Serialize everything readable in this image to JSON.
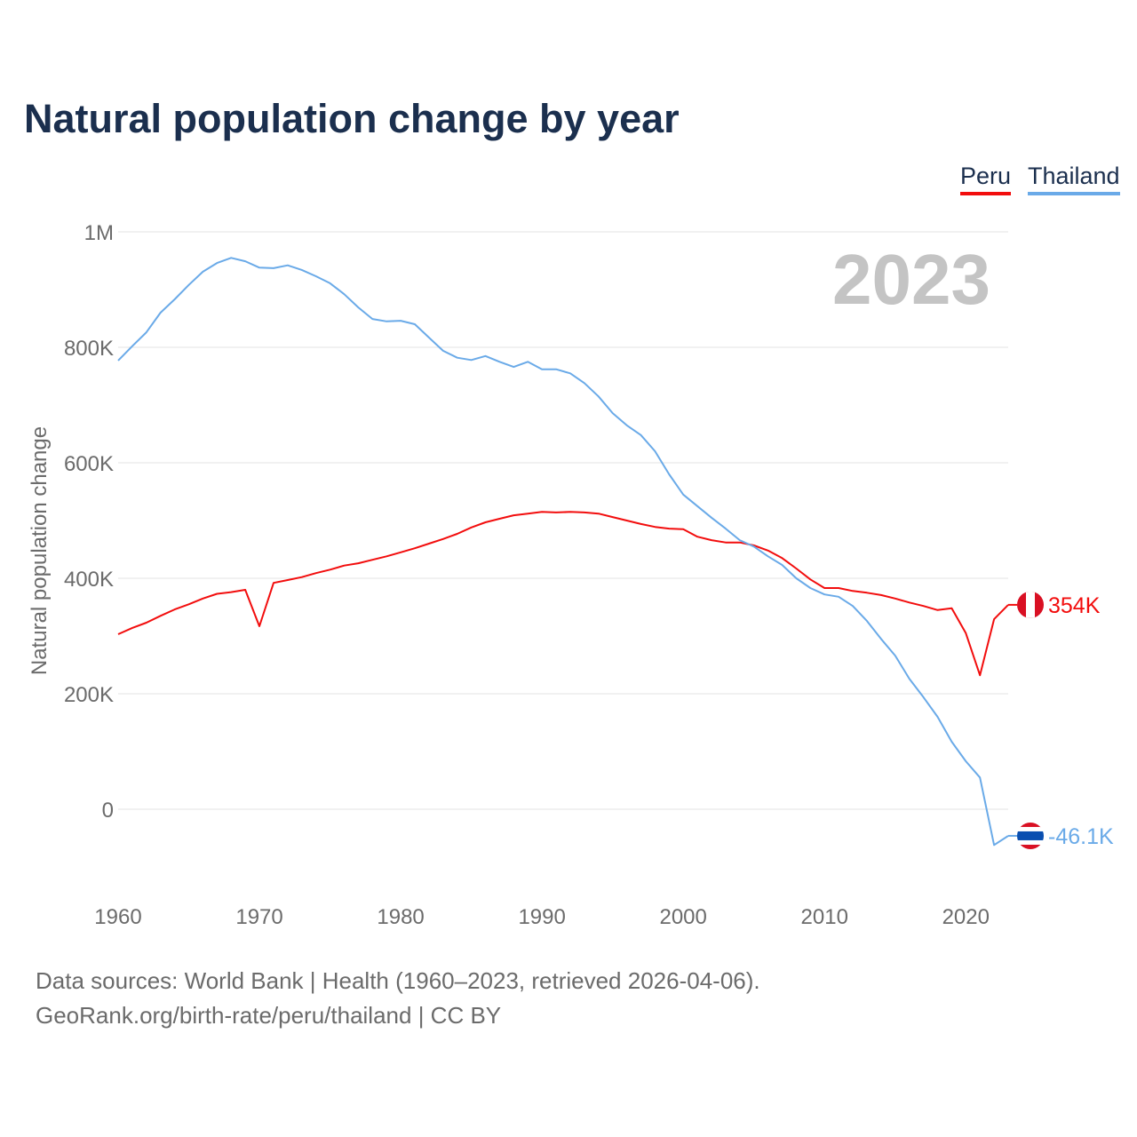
{
  "title": "Natural population change by year",
  "year_badge": "2023",
  "footer": {
    "line1": "Data sources: World Bank | Health (1960–2023, retrieved 2026-04-06).",
    "line2": "GeoRank.org/birth-rate/peru/thailand | CC BY"
  },
  "chart_data": {
    "type": "line",
    "title": "Natural population change by year",
    "xlabel": "",
    "ylabel": "Natural population change",
    "xlim": [
      1960,
      2023
    ],
    "ylim": [
      -100000,
      1000000
    ],
    "xticks": [
      1960,
      1970,
      1980,
      1990,
      2000,
      2010,
      2020
    ],
    "xtick_labels": [
      "1960",
      "1970",
      "1980",
      "1990",
      "2000",
      "2010",
      "2020"
    ],
    "yticks": [
      0,
      200000,
      400000,
      600000,
      800000,
      1000000
    ],
    "ytick_labels": [
      "0",
      "200K",
      "400K",
      "600K",
      "800K",
      "1M"
    ],
    "grid": true,
    "legend_position": "top-right",
    "x": [
      1960,
      1961,
      1962,
      1963,
      1964,
      1965,
      1966,
      1967,
      1968,
      1969,
      1970,
      1971,
      1972,
      1973,
      1974,
      1975,
      1976,
      1977,
      1978,
      1979,
      1980,
      1981,
      1982,
      1983,
      1984,
      1985,
      1986,
      1987,
      1988,
      1989,
      1990,
      1991,
      1992,
      1993,
      1994,
      1995,
      1996,
      1997,
      1998,
      1999,
      2000,
      2001,
      2002,
      2003,
      2004,
      2005,
      2006,
      2007,
      2008,
      2009,
      2010,
      2011,
      2012,
      2013,
      2014,
      2015,
      2016,
      2017,
      2018,
      2019,
      2020,
      2021,
      2022,
      2023
    ],
    "series": [
      {
        "name": "Peru",
        "color": "#f20d0d",
        "end_label": "354K",
        "values": [
          303000,
          314000,
          323000,
          335000,
          346000,
          355000,
          365000,
          373000,
          376000,
          380000,
          317000,
          392000,
          397000,
          402000,
          409000,
          415000,
          422000,
          426000,
          432000,
          438000,
          445000,
          452000,
          460000,
          468000,
          477000,
          488000,
          497000,
          503000,
          509000,
          512000,
          515000,
          514000,
          515000,
          514000,
          512000,
          506000,
          500000,
          494000,
          489000,
          486000,
          485000,
          472000,
          466000,
          462000,
          462000,
          457000,
          448000,
          435000,
          417000,
          398000,
          383000,
          383000,
          378000,
          375000,
          371000,
          365000,
          358000,
          352000,
          345000,
          348000,
          305000,
          232000,
          329000,
          354000
        ]
      },
      {
        "name": "Thailand",
        "color": "#6aaae8",
        "end_label": "-46.1K",
        "values": [
          777000,
          802000,
          826000,
          860000,
          883000,
          908000,
          931000,
          946000,
          955000,
          949000,
          938000,
          937000,
          942000,
          934000,
          923000,
          911000,
          892000,
          869000,
          849000,
          845000,
          846000,
          840000,
          817000,
          794000,
          782000,
          778000,
          785000,
          775000,
          766000,
          775000,
          762000,
          762000,
          755000,
          738000,
          715000,
          686000,
          665000,
          648000,
          620000,
          580000,
          545000,
          525000,
          505000,
          486000,
          466000,
          455000,
          438000,
          423000,
          400000,
          383000,
          372000,
          368000,
          352000,
          326000,
          295000,
          266000,
          226000,
          194000,
          160000,
          117000,
          83000,
          55000,
          -62000,
          -46100
        ]
      }
    ]
  }
}
